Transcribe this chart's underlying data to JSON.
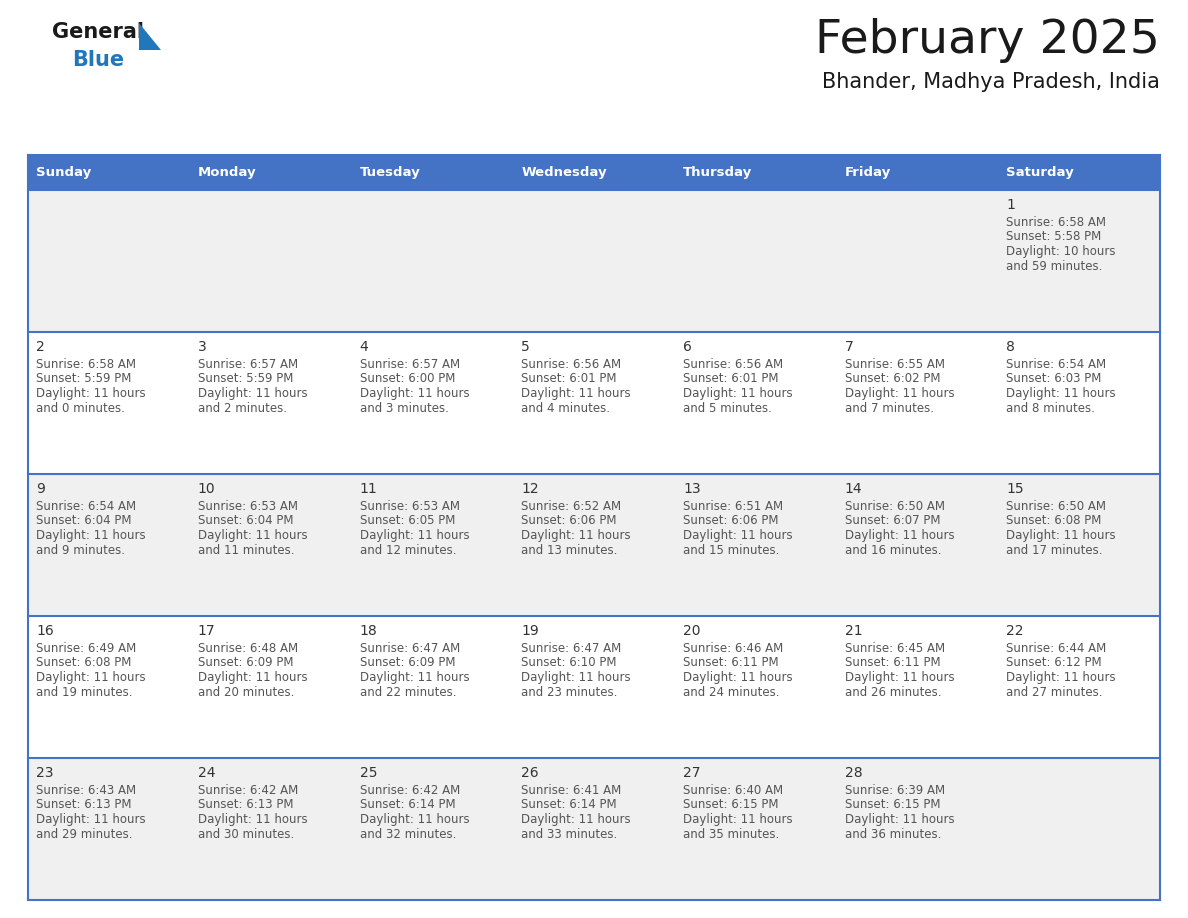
{
  "title": "February 2025",
  "subtitle": "Bhander, Madhya Pradesh, India",
  "header_bg": "#4472C4",
  "header_text_color": "#FFFFFF",
  "row_bg_odd": "#F0F0F0",
  "row_bg_even": "#FFFFFF",
  "border_color": "#4472C4",
  "day_headers": [
    "Sunday",
    "Monday",
    "Tuesday",
    "Wednesday",
    "Thursday",
    "Friday",
    "Saturday"
  ],
  "days": [
    {
      "day": 1,
      "col": 6,
      "row": 0,
      "sunrise": "6:58 AM",
      "sunset": "5:58 PM",
      "daylight_hours": 10,
      "daylight_minutes": 59
    },
    {
      "day": 2,
      "col": 0,
      "row": 1,
      "sunrise": "6:58 AM",
      "sunset": "5:59 PM",
      "daylight_hours": 11,
      "daylight_minutes": 0
    },
    {
      "day": 3,
      "col": 1,
      "row": 1,
      "sunrise": "6:57 AM",
      "sunset": "5:59 PM",
      "daylight_hours": 11,
      "daylight_minutes": 2
    },
    {
      "day": 4,
      "col": 2,
      "row": 1,
      "sunrise": "6:57 AM",
      "sunset": "6:00 PM",
      "daylight_hours": 11,
      "daylight_minutes": 3
    },
    {
      "day": 5,
      "col": 3,
      "row": 1,
      "sunrise": "6:56 AM",
      "sunset": "6:01 PM",
      "daylight_hours": 11,
      "daylight_minutes": 4
    },
    {
      "day": 6,
      "col": 4,
      "row": 1,
      "sunrise": "6:56 AM",
      "sunset": "6:01 PM",
      "daylight_hours": 11,
      "daylight_minutes": 5
    },
    {
      "day": 7,
      "col": 5,
      "row": 1,
      "sunrise": "6:55 AM",
      "sunset": "6:02 PM",
      "daylight_hours": 11,
      "daylight_minutes": 7
    },
    {
      "day": 8,
      "col": 6,
      "row": 1,
      "sunrise": "6:54 AM",
      "sunset": "6:03 PM",
      "daylight_hours": 11,
      "daylight_minutes": 8
    },
    {
      "day": 9,
      "col": 0,
      "row": 2,
      "sunrise": "6:54 AM",
      "sunset": "6:04 PM",
      "daylight_hours": 11,
      "daylight_minutes": 9
    },
    {
      "day": 10,
      "col": 1,
      "row": 2,
      "sunrise": "6:53 AM",
      "sunset": "6:04 PM",
      "daylight_hours": 11,
      "daylight_minutes": 11
    },
    {
      "day": 11,
      "col": 2,
      "row": 2,
      "sunrise": "6:53 AM",
      "sunset": "6:05 PM",
      "daylight_hours": 11,
      "daylight_minutes": 12
    },
    {
      "day": 12,
      "col": 3,
      "row": 2,
      "sunrise": "6:52 AM",
      "sunset": "6:06 PM",
      "daylight_hours": 11,
      "daylight_minutes": 13
    },
    {
      "day": 13,
      "col": 4,
      "row": 2,
      "sunrise": "6:51 AM",
      "sunset": "6:06 PM",
      "daylight_hours": 11,
      "daylight_minutes": 15
    },
    {
      "day": 14,
      "col": 5,
      "row": 2,
      "sunrise": "6:50 AM",
      "sunset": "6:07 PM",
      "daylight_hours": 11,
      "daylight_minutes": 16
    },
    {
      "day": 15,
      "col": 6,
      "row": 2,
      "sunrise": "6:50 AM",
      "sunset": "6:08 PM",
      "daylight_hours": 11,
      "daylight_minutes": 17
    },
    {
      "day": 16,
      "col": 0,
      "row": 3,
      "sunrise": "6:49 AM",
      "sunset": "6:08 PM",
      "daylight_hours": 11,
      "daylight_minutes": 19
    },
    {
      "day": 17,
      "col": 1,
      "row": 3,
      "sunrise": "6:48 AM",
      "sunset": "6:09 PM",
      "daylight_hours": 11,
      "daylight_minutes": 20
    },
    {
      "day": 18,
      "col": 2,
      "row": 3,
      "sunrise": "6:47 AM",
      "sunset": "6:09 PM",
      "daylight_hours": 11,
      "daylight_minutes": 22
    },
    {
      "day": 19,
      "col": 3,
      "row": 3,
      "sunrise": "6:47 AM",
      "sunset": "6:10 PM",
      "daylight_hours": 11,
      "daylight_minutes": 23
    },
    {
      "day": 20,
      "col": 4,
      "row": 3,
      "sunrise": "6:46 AM",
      "sunset": "6:11 PM",
      "daylight_hours": 11,
      "daylight_minutes": 24
    },
    {
      "day": 21,
      "col": 5,
      "row": 3,
      "sunrise": "6:45 AM",
      "sunset": "6:11 PM",
      "daylight_hours": 11,
      "daylight_minutes": 26
    },
    {
      "day": 22,
      "col": 6,
      "row": 3,
      "sunrise": "6:44 AM",
      "sunset": "6:12 PM",
      "daylight_hours": 11,
      "daylight_minutes": 27
    },
    {
      "day": 23,
      "col": 0,
      "row": 4,
      "sunrise": "6:43 AM",
      "sunset": "6:13 PM",
      "daylight_hours": 11,
      "daylight_minutes": 29
    },
    {
      "day": 24,
      "col": 1,
      "row": 4,
      "sunrise": "6:42 AM",
      "sunset": "6:13 PM",
      "daylight_hours": 11,
      "daylight_minutes": 30
    },
    {
      "day": 25,
      "col": 2,
      "row": 4,
      "sunrise": "6:42 AM",
      "sunset": "6:14 PM",
      "daylight_hours": 11,
      "daylight_minutes": 32
    },
    {
      "day": 26,
      "col": 3,
      "row": 4,
      "sunrise": "6:41 AM",
      "sunset": "6:14 PM",
      "daylight_hours": 11,
      "daylight_minutes": 33
    },
    {
      "day": 27,
      "col": 4,
      "row": 4,
      "sunrise": "6:40 AM",
      "sunset": "6:15 PM",
      "daylight_hours": 11,
      "daylight_minutes": 35
    },
    {
      "day": 28,
      "col": 5,
      "row": 4,
      "sunrise": "6:39 AM",
      "sunset": "6:15 PM",
      "daylight_hours": 11,
      "daylight_minutes": 36
    }
  ],
  "num_rows": 5,
  "num_cols": 7,
  "logo_general_color": "#1a1a1a",
  "logo_blue_color": "#2277bb",
  "logo_triangle_color": "#2277bb",
  "title_color": "#1a1a1a",
  "subtitle_color": "#1a1a1a",
  "day_number_color": "#333333",
  "info_text_color": "#555555"
}
